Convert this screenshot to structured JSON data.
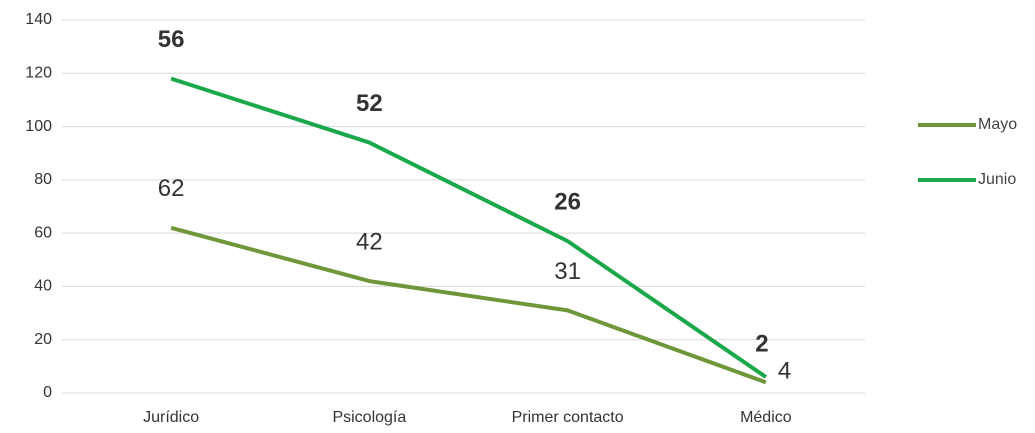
{
  "chart_data": {
    "type": "line",
    "stacked": true,
    "categories": [
      "Jurídico",
      "Psicología",
      "Primer contacto",
      "Médico"
    ],
    "series": [
      {
        "name": "Mayo",
        "color": "#70963a",
        "values": [
          62,
          42,
          31,
          4
        ]
      },
      {
        "name": "Junio",
        "color": "#1aa84a",
        "values": [
          56,
          52,
          26,
          2
        ]
      }
    ],
    "ylim": [
      0,
      140
    ],
    "yticks": [
      0,
      20,
      40,
      60,
      80,
      100,
      120,
      140
    ],
    "grid": true,
    "legend": "right"
  }
}
